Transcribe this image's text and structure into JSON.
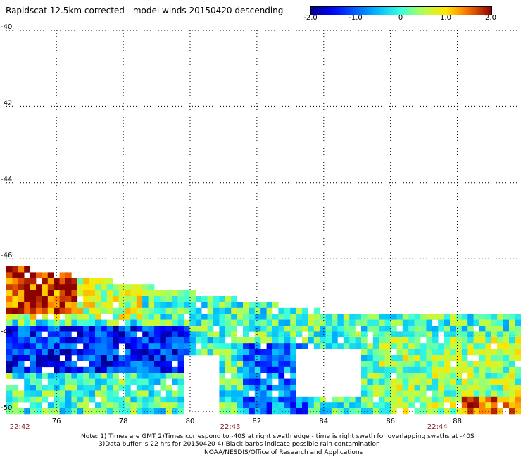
{
  "title": "Rapidscat 12.5km corrected - model winds 20150420 descending",
  "colorbar": {
    "ticks": [
      "-2.0",
      "-1.0",
      "0",
      "1.0",
      "2.0"
    ],
    "tick_values": [
      -2.0,
      -1.0,
      0,
      1.0,
      2.0
    ],
    "range": [
      -2.0,
      2.0
    ]
  },
  "chart_data": {
    "type": "heatmap",
    "title": "Rapidscat 12.5km corrected - model winds 20150420 descending",
    "xlabel": "",
    "ylabel": "",
    "xlim": [
      74.5,
      89.8
    ],
    "ylim": [
      -50,
      -40
    ],
    "x_ticks": [
      "76",
      "78",
      "80",
      "82",
      "84",
      "86",
      "88"
    ],
    "x_tick_values": [
      76,
      78,
      80,
      82,
      84,
      86,
      88
    ],
    "y_ticks": [
      "-40",
      "-42",
      "-44",
      "-46",
      "-48",
      "-50"
    ],
    "y_tick_values": [
      -40,
      -42,
      -44,
      -46,
      -48,
      -50
    ],
    "time_labels": [
      {
        "text": "22:42",
        "x": 74.6
      },
      {
        "text": "22:43",
        "x": 80.9
      },
      {
        "text": "22:44",
        "x": 87.1
      }
    ],
    "grid": true,
    "value_range": [
      -2.0,
      2.0
    ],
    "swath": {
      "lat_top_west": -46.2,
      "lat_top_east": -47.5,
      "lat_bottom": -50
    }
  },
  "notes": [
    "Note: 1) Times are GMT 2)Times correspond to -40S at right swath edge - time is right swath for overlapping swaths at -40S",
    "3)Data buffer is 22 hrs for 20150420 4) Black barbs indicate possible rain contamination",
    "NOAA/NESDIS/Office of Research and Applications"
  ],
  "colors": {
    "time_label": "#8b1a1a",
    "grid": "#000000"
  }
}
